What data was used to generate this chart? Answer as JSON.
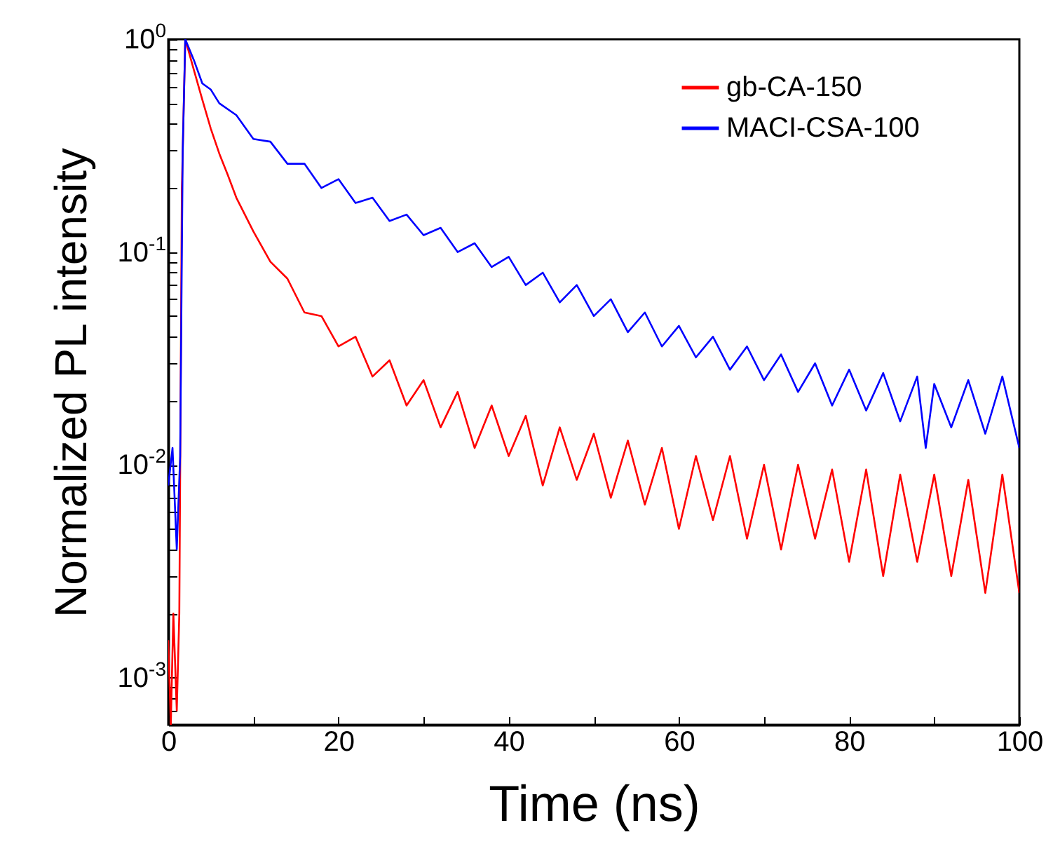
{
  "chart_data": {
    "type": "line",
    "xlabel": "Time (ns)",
    "ylabel": "Normalized PL intensity",
    "log": "y",
    "legend": "top right",
    "xlim": [
      0,
      100
    ],
    "ylim": [
      0.0006,
      1
    ],
    "xticks": [
      0,
      {
        "value": 10,
        "label": null
      },
      20,
      {
        "value": 30,
        "label": null
      },
      40,
      {
        "value": 50,
        "label": null
      },
      60,
      {
        "value": 70,
        "label": null
      },
      80,
      {
        "value": 90,
        "label": null
      },
      100
    ],
    "yticks": [
      {
        "value": 0.0007,
        "label": null
      },
      {
        "value": 0.0008,
        "label": null
      },
      {
        "value": 0.0009,
        "label": null
      },
      {
        "value": 0.001,
        "label": "10$^{-3}$"
      },
      {
        "value": 0.002,
        "label": null
      },
      {
        "value": 0.003,
        "label": null
      },
      {
        "value": 0.004,
        "label": null
      },
      {
        "value": 0.005,
        "label": null
      },
      {
        "value": 0.006,
        "label": null
      },
      {
        "value": 0.007,
        "label": null
      },
      {
        "value": 0.008,
        "label": null
      },
      {
        "value": 0.009,
        "label": null
      },
      {
        "value": 0.01,
        "label": "10$^{-2}$"
      },
      {
        "value": 0.02,
        "label": null
      },
      {
        "value": 0.03,
        "label": null
      },
      {
        "value": 0.04,
        "label": null
      },
      {
        "value": 0.05,
        "label": null
      },
      {
        "value": 0.06,
        "label": null
      },
      {
        "value": 0.07,
        "label": null
      },
      {
        "value": 0.08,
        "label": null
      },
      {
        "value": 0.09,
        "label": null
      },
      {
        "value": 0.1,
        "label": "10$^{-1}$"
      },
      {
        "value": 0.2,
        "label": null
      },
      {
        "value": 0.3,
        "label": null
      },
      {
        "value": 0.4,
        "label": null
      },
      {
        "value": 0.5,
        "label": null
      },
      {
        "value": 0.6,
        "label": null
      },
      {
        "value": 0.7,
        "label": null
      },
      {
        "value": 0.8,
        "label": null
      },
      {
        "value": 0.9,
        "label": null
      },
      {
        "value": 1,
        "label": "10$^{0}$"
      }
    ],
    "series": [
      {
        "name": "gb-CA-150",
        "color": "#ff0000",
        "x": [
          0,
          0.3,
          0.6,
          1,
          1.3,
          1.6,
          2,
          3,
          4,
          5,
          6,
          7,
          8,
          10,
          12,
          14,
          16,
          18,
          20,
          22,
          24,
          26,
          28,
          30,
          32,
          34,
          36,
          38,
          40,
          42,
          44,
          46,
          48,
          50,
          52,
          54,
          56,
          58,
          60,
          62,
          64,
          66,
          68,
          70,
          72,
          74,
          76,
          78,
          80,
          82,
          84,
          86,
          88,
          90,
          92,
          94,
          96,
          98,
          100
        ],
        "values": [
          0.0015,
          0.0006,
          0.002,
          0.0007,
          0.002,
          0.2,
          1,
          0.72,
          0.52,
          0.38,
          0.29,
          0.23,
          0.18,
          0.125,
          0.09,
          0.075,
          0.052,
          0.05,
          0.036,
          0.04,
          0.026,
          0.031,
          0.019,
          0.025,
          0.015,
          0.022,
          0.012,
          0.019,
          0.011,
          0.017,
          0.008,
          0.015,
          0.0085,
          0.014,
          0.007,
          0.013,
          0.0065,
          0.012,
          0.005,
          0.011,
          0.0055,
          0.011,
          0.0045,
          0.01,
          0.004,
          0.01,
          0.0045,
          0.0095,
          0.0035,
          0.0095,
          0.003,
          0.009,
          0.0035,
          0.009,
          0.003,
          0.0085,
          0.0025,
          0.009,
          0.0025
        ]
      },
      {
        "name": "MACI-CSA-100",
        "color": "#0000ff",
        "x": [
          0,
          0.5,
          1,
          1.4,
          1.7,
          2,
          3,
          4,
          5,
          6,
          8,
          10,
          12,
          14,
          16,
          18,
          20,
          22,
          24,
          26,
          28,
          30,
          32,
          34,
          36,
          38,
          40,
          42,
          44,
          46,
          48,
          50,
          52,
          54,
          56,
          58,
          60,
          62,
          64,
          66,
          68,
          70,
          72,
          74,
          76,
          78,
          80,
          82,
          84,
          86,
          88,
          89,
          90,
          92,
          94,
          96,
          98,
          100
        ],
        "values": [
          0.008,
          0.012,
          0.004,
          0.011,
          0.3,
          1,
          0.8,
          0.62,
          0.58,
          0.5,
          0.44,
          0.34,
          0.33,
          0.26,
          0.26,
          0.2,
          0.22,
          0.17,
          0.18,
          0.14,
          0.15,
          0.12,
          0.13,
          0.1,
          0.11,
          0.085,
          0.095,
          0.07,
          0.08,
          0.058,
          0.07,
          0.05,
          0.06,
          0.042,
          0.052,
          0.036,
          0.045,
          0.032,
          0.04,
          0.028,
          0.036,
          0.025,
          0.033,
          0.022,
          0.03,
          0.019,
          0.028,
          0.018,
          0.027,
          0.016,
          0.026,
          0.012,
          0.024,
          0.015,
          0.025,
          0.014,
          0.026,
          0.012
        ]
      }
    ]
  }
}
